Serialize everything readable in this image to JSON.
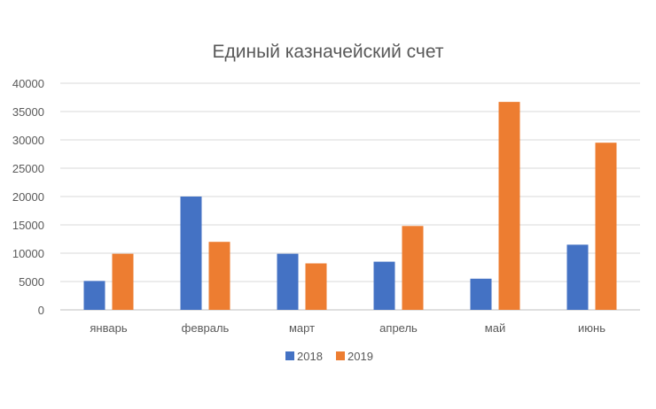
{
  "chart_data": {
    "type": "bar",
    "title": "Единый казначейский счет",
    "xlabel": "",
    "ylabel": "",
    "categories": [
      "январь",
      "февраль",
      "март",
      "апрель",
      "май",
      "июнь"
    ],
    "series": [
      {
        "name": "2018",
        "color": "#4472c4",
        "values": [
          5100,
          20000,
          9900,
          8500,
          5500,
          11500
        ]
      },
      {
        "name": "2019",
        "color": "#ed7d31",
        "values": [
          9900,
          12000,
          8200,
          14800,
          36700,
          29500
        ]
      }
    ],
    "ylim": [
      0,
      40000
    ],
    "yticks": [
      "0",
      "5000",
      "10000",
      "15000",
      "20000",
      "25000",
      "30000",
      "35000",
      "40000"
    ],
    "grid": true,
    "legend_position": "bottom"
  }
}
